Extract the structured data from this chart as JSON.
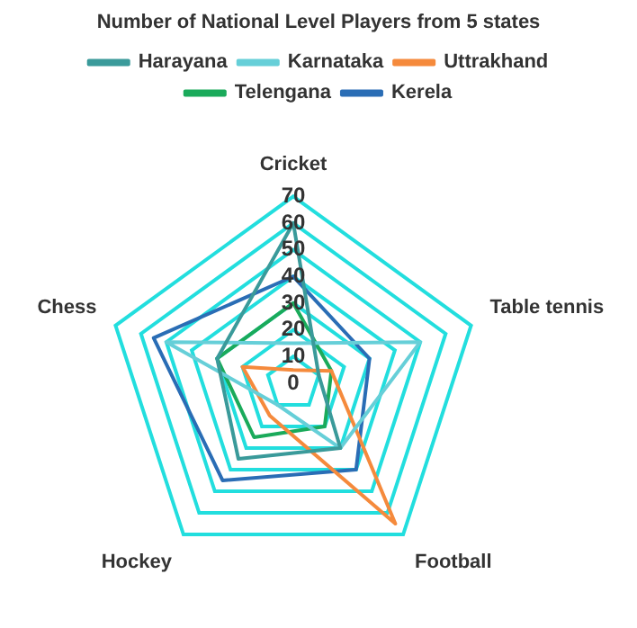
{
  "chart_data": {
    "type": "radar",
    "title": "Number of National Level Players from 5 states",
    "categories": [
      "Cricket",
      "Table tennis",
      "Football",
      "Hockey",
      "Chess"
    ],
    "series": [
      {
        "name": "Harayana",
        "color": "#3a9a9a",
        "values": [
          60,
          10,
          30,
          35,
          30
        ]
      },
      {
        "name": "Karnataka",
        "color": "#66cfd8",
        "values": [
          15,
          50,
          30,
          10,
          50
        ]
      },
      {
        "name": "Uttrakhand",
        "color": "#f58a3c",
        "values": [
          5,
          15,
          65,
          15,
          20
        ]
      },
      {
        "name": "Telengana",
        "color": "#1aaa5a",
        "values": [
          30,
          15,
          20,
          25,
          30
        ]
      },
      {
        "name": "Kerela",
        "color": "#2a6db5",
        "values": [
          40,
          30,
          40,
          45,
          55
        ]
      }
    ],
    "ylim": [
      0,
      70
    ],
    "yticks": [
      0,
      10,
      20,
      30,
      40,
      50,
      60,
      70
    ],
    "grid": true,
    "legend": "top",
    "marker": "none"
  }
}
